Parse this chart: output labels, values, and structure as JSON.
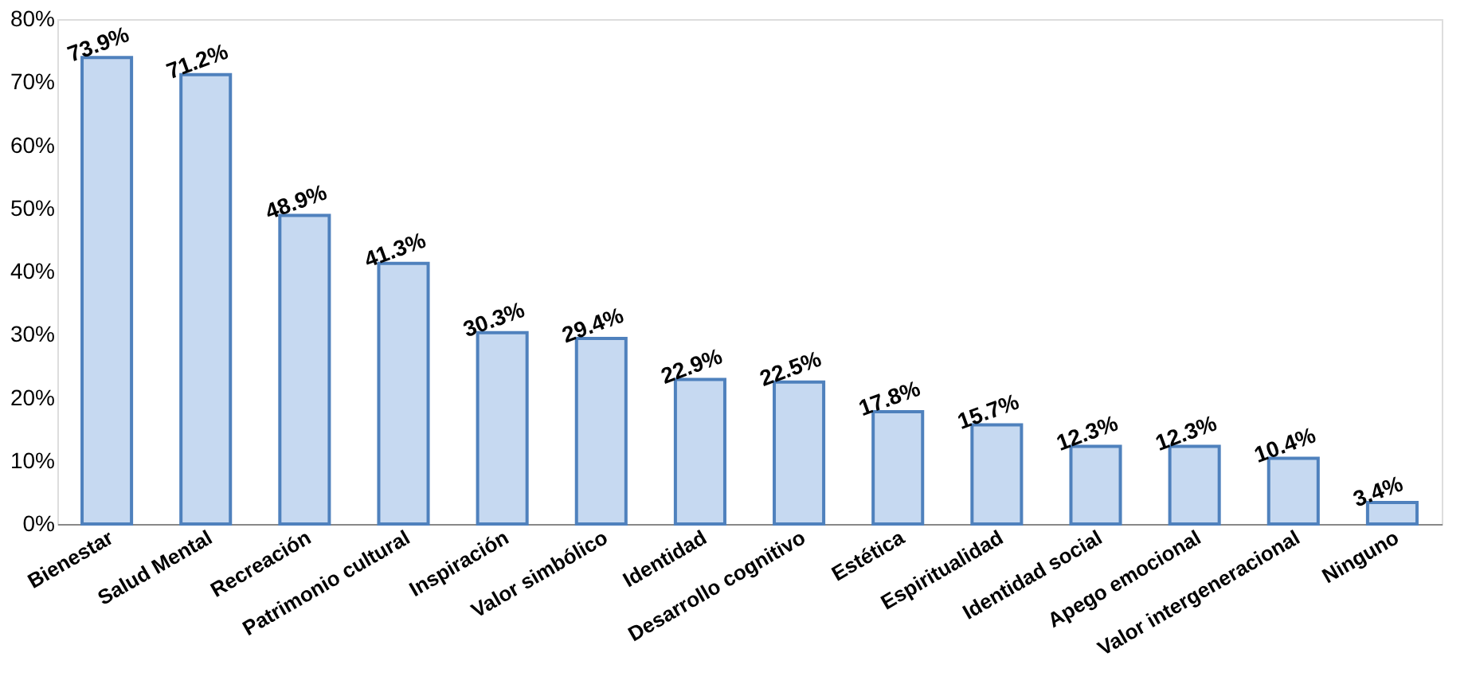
{
  "chart_data": {
    "type": "bar",
    "categories": [
      "Bienestar",
      "Salud Mental",
      "Recreación",
      "Patrimonio cultural",
      "Inspiración",
      "Valor simbólico",
      "Identidad",
      "Desarrollo cognitivo",
      "Estética",
      "Espiritualidad",
      "Identidad social",
      "Apego emocional",
      "Valor intergeneracional",
      "Ninguno"
    ],
    "values": [
      73.9,
      71.2,
      48.9,
      41.3,
      30.3,
      29.4,
      22.9,
      22.5,
      17.8,
      15.7,
      12.3,
      12.3,
      10.4,
      3.4
    ],
    "value_labels": [
      "73.9%",
      "71.2%",
      "48.9%",
      "41.3%",
      "30.3%",
      "29.4%",
      "22.9%",
      "22.5%",
      "17.8%",
      "15.7%",
      "12.3%",
      "12.3%",
      "10.4%",
      "3.4%"
    ],
    "color": "#c6d9f1",
    "ylim": [
      0,
      80
    ],
    "yticks": [
      {
        "value": 0,
        "label": "0%"
      },
      {
        "value": 10,
        "label": "10%"
      },
      {
        "value": 20,
        "label": "20%"
      },
      {
        "value": 30,
        "label": "30%"
      },
      {
        "value": 40,
        "label": "40%"
      },
      {
        "value": 50,
        "label": "50%"
      },
      {
        "value": 60,
        "label": "60%"
      },
      {
        "value": 70,
        "label": "70%"
      },
      {
        "value": 80,
        "label": "80%"
      }
    ],
    "grid": false
  }
}
